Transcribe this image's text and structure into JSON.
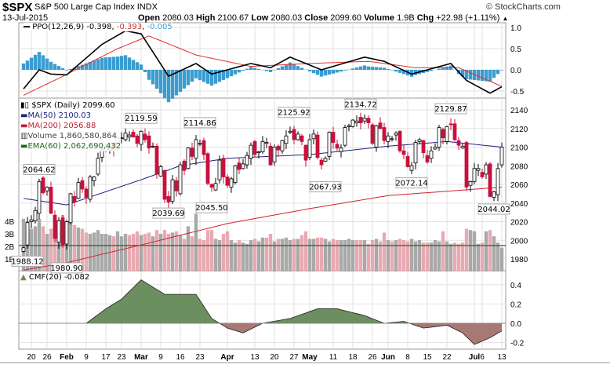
{
  "header": {
    "symbol": "$SPX",
    "name": "S&P 500 Large Cap Index",
    "exchange": "INDX",
    "brand": "© StockCharts.com",
    "date": "13-Jul-2015",
    "open_label": "Open",
    "open": "2080.03",
    "high_label": "High",
    "high": "2100.67",
    "low_label": "Low",
    "low": "2080.03",
    "close_label": "Close",
    "close": "2099.60",
    "volume_label": "Volume",
    "volume": "1.9B",
    "chg_label": "Chg",
    "chg": "+22.98 (+1.11%)",
    "chg_arrow": "▲"
  },
  "legend": {
    "ppo_name": "PPO(12,26,9)",
    "ppo_value": "-0.398",
    "ppo_signal": "-0.393",
    "ppo_hist": "-0.005",
    "price": "$SPX (Daily) 2099.60",
    "ma50": "MA(50) 2100.03",
    "ma200": "MA(200) 2056.88",
    "volume": "Volume 1,860,580,864",
    "ema60": "EMA(60) 2,062,690,432",
    "cmf": "CMF(20) -0.082"
  },
  "colors": {
    "up": "#000000",
    "down": "#c8103c",
    "ma50": "#1a237e",
    "ma200": "#d42030",
    "ema": "#1e6b1e",
    "vol_up": "#a9a9a9",
    "vol_down": "#e8aab2",
    "hist": "#3b9ccf",
    "cmf_pos": "#6b8f5e",
    "cmf_neg": "#a87874",
    "ppo_signal": "#e03030"
  },
  "chart_data": {
    "type": "candlestick",
    "title": "$SPX S&P 500 Large Cap Index",
    "dates": [
      "01-15",
      "01-16",
      "01-20",
      "01-21",
      "01-22",
      "01-23",
      "01-26",
      "01-27",
      "01-28",
      "01-29",
      "01-30",
      "02-02",
      "02-03",
      "02-04",
      "02-05",
      "02-06",
      "02-09",
      "02-10",
      "02-11",
      "02-12",
      "02-13",
      "02-17",
      "02-18",
      "02-19",
      "02-20",
      "02-23",
      "02-24",
      "02-25",
      "02-26",
      "02-27",
      "03-02",
      "03-03",
      "03-04",
      "03-05",
      "03-06",
      "03-09",
      "03-10",
      "03-11",
      "03-12",
      "03-13",
      "03-16",
      "03-17",
      "03-18",
      "03-19",
      "03-20",
      "03-23",
      "03-24",
      "03-25",
      "03-26",
      "03-27",
      "03-30",
      "03-31",
      "04-01",
      "04-02",
      "04-06",
      "04-07",
      "04-08",
      "04-09",
      "04-10",
      "04-13",
      "04-14",
      "04-15",
      "04-16",
      "04-17",
      "04-20",
      "04-21",
      "04-22",
      "04-23",
      "04-24",
      "04-27",
      "04-28",
      "04-29",
      "04-30",
      "05-01",
      "05-04",
      "05-05",
      "05-06",
      "05-07",
      "05-08",
      "05-11",
      "05-12",
      "05-13",
      "05-14",
      "05-15",
      "05-18",
      "05-19",
      "05-20",
      "05-21",
      "05-22",
      "05-26",
      "05-27",
      "05-28",
      "05-29",
      "06-01",
      "06-02",
      "06-03",
      "06-04",
      "06-05",
      "06-08",
      "06-09",
      "06-10",
      "06-11",
      "06-12",
      "06-15",
      "06-16",
      "06-17",
      "06-18",
      "06-19",
      "06-22",
      "06-23",
      "06-24",
      "06-25",
      "06-26",
      "06-29",
      "06-30",
      "07-01",
      "07-02",
      "07-06",
      "07-07",
      "07-08",
      "07-09",
      "07-10",
      "07-13"
    ],
    "close": [
      1992,
      2019,
      2022,
      2032,
      2063,
      2051,
      2057,
      2029,
      2002,
      2021,
      1995,
      2020,
      2050,
      2041,
      2062,
      2055,
      2046,
      2068,
      2068,
      2088,
      2097,
      2100,
      2100,
      2097,
      2110,
      2110,
      2115,
      2113,
      2111,
      2104,
      2117,
      2108,
      2099,
      2101,
      2071,
      2079,
      2044,
      2041,
      2065,
      2053,
      2081,
      2075,
      2099,
      2090,
      2108,
      2104,
      2092,
      2061,
      2057,
      2061,
      2086,
      2068,
      2059,
      2066,
      2080,
      2076,
      2082,
      2091,
      2102,
      2092,
      2095,
      2106,
      2105,
      2081,
      2100,
      2097,
      2107,
      2112,
      2117,
      2108,
      2114,
      2106,
      2086,
      2108,
      2114,
      2089,
      2081,
      2088,
      2116,
      2105,
      2099,
      2099,
      2121,
      2123,
      2129,
      2128,
      2126,
      2131,
      2126,
      2104,
      2123,
      2120,
      2107,
      2112,
      2109,
      2115,
      2096,
      2092,
      2079,
      2080,
      2105,
      2108,
      2094,
      2084,
      2096,
      2100,
      2121,
      2110,
      2122,
      2124,
      2108,
      2102,
      2101,
      2057,
      2063,
      2077,
      2077,
      2068,
      2081,
      2047,
      2052,
      2077,
      2100
    ],
    "volume_billions": [
      4.2,
      4.0,
      3.4,
      3.6,
      4.2,
      3.6,
      3.0,
      3.4,
      3.9,
      4.1,
      4.5,
      4.0,
      4.2,
      3.7,
      3.5,
      3.4,
      3.1,
      3.0,
      3.1,
      3.3,
      3.0,
      3.0,
      2.9,
      2.8,
      3.2,
      2.8,
      3.0,
      2.9,
      3.0,
      3.2,
      2.9,
      3.0,
      3.1,
      2.8,
      3.3,
      3.0,
      3.3,
      3.0,
      3.1,
      3.2,
      2.9,
      2.6,
      3.6,
      2.8,
      4.6,
      2.6,
      2.5,
      3.3,
      3.3,
      2.6,
      2.5,
      3.0,
      3.2,
      2.5,
      2.3,
      2.5,
      2.3,
      2.2,
      2.5,
      2.6,
      2.4,
      2.7,
      2.7,
      3.0,
      2.4,
      2.6,
      2.6,
      2.7,
      2.5,
      2.6,
      2.6,
      2.9,
      3.2,
      2.6,
      2.6,
      2.7,
      2.7,
      2.6,
      2.4,
      2.6,
      2.5,
      2.5,
      2.5,
      2.6,
      2.5,
      2.5,
      2.5,
      2.5,
      2.2,
      2.5,
      2.6,
      2.4,
      3.1,
      2.5,
      2.4,
      2.5,
      2.6,
      2.5,
      2.4,
      2.6,
      2.4,
      2.5,
      2.3,
      2.3,
      2.3,
      2.5,
      2.4,
      3.2,
      2.4,
      2.2,
      2.3,
      2.2,
      2.3,
      3.4,
      3.3,
      3.2,
      2.2,
      2.3,
      3.2,
      3.3,
      2.8,
      2.3,
      1.9
    ],
    "ma50": [
      [
        "01-15",
        2045
      ],
      [
        "02-02",
        2038
      ],
      [
        "03-02",
        2065
      ],
      [
        "03-16",
        2080
      ],
      [
        "04-01",
        2088
      ],
      [
        "05-01",
        2092
      ],
      [
        "06-01",
        2101
      ],
      [
        "06-22",
        2106
      ],
      [
        "07-13",
        2100
      ]
    ],
    "ma200": [
      [
        "01-15",
        1968
      ],
      [
        "02-02",
        1976
      ],
      [
        "03-02",
        1995
      ],
      [
        "04-01",
        2018
      ],
      [
        "05-01",
        2034
      ],
      [
        "06-01",
        2048
      ],
      [
        "07-13",
        2057
      ]
    ],
    "ema60_volume_billions": 2.07,
    "ppo": [
      [
        "01-15",
        -0.45
      ],
      [
        "01-22",
        0.0
      ],
      [
        "01-27",
        -0.1
      ],
      [
        "02-02",
        -0.12
      ],
      [
        "02-13",
        0.6
      ],
      [
        "02-24",
        0.92
      ],
      [
        "03-02",
        0.85
      ],
      [
        "03-11",
        -0.15
      ],
      [
        "03-20",
        0.15
      ],
      [
        "03-26",
        -0.1
      ],
      [
        "04-10",
        0.15
      ],
      [
        "04-17",
        0.05
      ],
      [
        "04-24",
        0.3
      ],
      [
        "05-06",
        0.0
      ],
      [
        "05-21",
        0.3
      ],
      [
        "05-29",
        0.2
      ],
      [
        "06-09",
        -0.1
      ],
      [
        "06-23",
        0.15
      ],
      [
        "06-29",
        -0.25
      ],
      [
        "07-08",
        -0.55
      ],
      [
        "07-13",
        -0.4
      ]
    ],
    "ppo_signal": [
      [
        "01-15",
        -0.6
      ],
      [
        "01-29",
        -0.2
      ],
      [
        "02-20",
        0.5
      ],
      [
        "03-04",
        0.8
      ],
      [
        "03-20",
        0.35
      ],
      [
        "04-10",
        0.08
      ],
      [
        "05-01",
        0.15
      ],
      [
        "05-22",
        0.2
      ],
      [
        "06-10",
        0.05
      ],
      [
        "06-25",
        0.05
      ],
      [
        "07-13",
        -0.39
      ]
    ],
    "cmf": [
      [
        "02-09",
        0.0
      ],
      [
        "02-17",
        0.15
      ],
      [
        "02-23",
        0.25
      ],
      [
        "03-02",
        0.45
      ],
      [
        "03-10",
        0.3
      ],
      [
        "03-20",
        0.3
      ],
      [
        "03-26",
        0.05
      ],
      [
        "04-01",
        -0.05
      ],
      [
        "04-08",
        -0.1
      ],
      [
        "04-15",
        0.0
      ],
      [
        "04-24",
        0.05
      ],
      [
        "05-05",
        0.15
      ],
      [
        "05-12",
        0.15
      ],
      [
        "05-21",
        0.08
      ],
      [
        "05-29",
        0.0
      ],
      [
        "06-05",
        0.02
      ],
      [
        "06-12",
        -0.05
      ],
      [
        "06-22",
        -0.02
      ],
      [
        "06-26",
        -0.1
      ],
      [
        "07-01",
        -0.22
      ],
      [
        "07-08",
        -0.15
      ],
      [
        "07-13",
        -0.08
      ]
    ],
    "annotations": [
      {
        "text": "2064.62",
        "date": "01-22",
        "value": 2064.62,
        "pos": "above"
      },
      {
        "text": "2119.59",
        "date": "03-02",
        "value": 2119.59,
        "pos": "above"
      },
      {
        "text": "2114.86",
        "date": "03-23",
        "value": 2114.86,
        "pos": "above"
      },
      {
        "text": "2125.92",
        "date": "04-27",
        "value": 2125.92,
        "pos": "above"
      },
      {
        "text": "2134.72",
        "date": "05-20",
        "value": 2134.72,
        "pos": "above"
      },
      {
        "text": "2129.87",
        "date": "06-23",
        "value": 2129.87,
        "pos": "above"
      },
      {
        "text": "2039.69",
        "date": "03-11",
        "value": 2039.69,
        "pos": "below"
      },
      {
        "text": "2045.50",
        "date": "03-26",
        "value": 2045.5,
        "pos": "below"
      },
      {
        "text": "2067.93",
        "date": "05-07",
        "value": 2067.93,
        "pos": "below"
      },
      {
        "text": "2072.14",
        "date": "06-09",
        "value": 2072.14,
        "pos": "below"
      },
      {
        "text": "2044.02",
        "date": "07-09",
        "value": 2044.02,
        "pos": "below"
      },
      {
        "text": "1988.12",
        "date": "01-16",
        "value": 1988.12,
        "pos": "below"
      },
      {
        "text": "1980.90",
        "date": "02-02",
        "value": 1980.9,
        "pos": "below"
      }
    ],
    "price_ticks": [
      2140,
      2120,
      2100,
      2080,
      2060,
      2040,
      2020,
      2000,
      1980
    ],
    "volume_ticks": [
      "4B",
      "3B",
      "2B",
      "1B"
    ],
    "ppo_ticks": [
      "1.0",
      "0.5",
      "0.0",
      "-0.5"
    ],
    "cmf_ticks": [
      "0.4",
      "0.2",
      "0.0",
      "-0.2"
    ],
    "x_ticks": [
      {
        "text": "20",
        "date": "01-20"
      },
      {
        "text": "26",
        "date": "01-26"
      },
      {
        "text": "Feb",
        "date": "02-02",
        "bold": true
      },
      {
        "text": "9",
        "date": "02-09"
      },
      {
        "text": "17",
        "date": "02-17"
      },
      {
        "text": "23",
        "date": "02-23"
      },
      {
        "text": "Mar",
        "date": "03-02",
        "bold": true
      },
      {
        "text": "9",
        "date": "03-09"
      },
      {
        "text": "16",
        "date": "03-16"
      },
      {
        "text": "23",
        "date": "03-23"
      },
      {
        "text": "Apr",
        "date": "04-01",
        "bold": true
      },
      {
        "text": "13",
        "date": "04-13"
      },
      {
        "text": "20",
        "date": "04-20"
      },
      {
        "text": "27",
        "date": "04-27"
      },
      {
        "text": "May",
        "date": "05-01",
        "bold": true
      },
      {
        "text": "11",
        "date": "05-11"
      },
      {
        "text": "18",
        "date": "05-18"
      },
      {
        "text": "26",
        "date": "05-26"
      },
      {
        "text": "Jun",
        "date": "06-01",
        "bold": true
      },
      {
        "text": "8",
        "date": "06-08"
      },
      {
        "text": "15",
        "date": "06-15"
      },
      {
        "text": "22",
        "date": "06-22"
      },
      {
        "text": "Jul",
        "date": "07-01",
        "bold": true
      },
      {
        "text": "6",
        "date": "07-06"
      },
      {
        "text": "13",
        "date": "07-13"
      }
    ]
  }
}
